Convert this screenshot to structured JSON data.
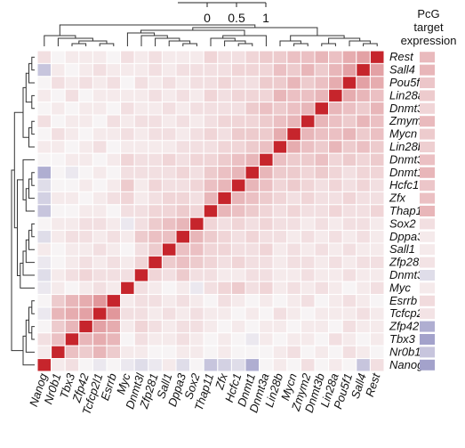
{
  "chart_data": {
    "type": "heatmap",
    "genes": [
      "Nanog",
      "Nr0b1",
      "Tbx3",
      "Zfp42",
      "Tcfcp2l1",
      "Esrrb",
      "Myc",
      "Dnmt3l",
      "Zfp281",
      "Sall1",
      "Dppa3",
      "Sox2",
      "Thap11",
      "Zfx",
      "Hcfc1",
      "Dnmt1",
      "Dnmt3a",
      "Lin28b",
      "Mycn",
      "Zmym2",
      "Dnmt3b",
      "Lin28a",
      "Pou5f1",
      "Sall4",
      "Rest"
    ],
    "color_scale": {
      "ticks": [
        "0",
        "0.5",
        "1"
      ],
      "min": -0.5,
      "max": 1,
      "colors": {
        "negative": "#7f7fb9",
        "zero": "#f7f4f5",
        "positive": "#c6252c"
      }
    },
    "side_annotation": {
      "title": [
        "PcG",
        "target",
        "expression"
      ],
      "values": [
        -0.35,
        -0.2,
        -0.35,
        -0.3,
        0.08,
        0.12,
        0.05,
        -0.1,
        0.08,
        0.05,
        0.05,
        0.1,
        0.3,
        0.25,
        0.22,
        0.3,
        0.25,
        0.18,
        0.2,
        0.28,
        0.15,
        0.2,
        0.22,
        0.3,
        0.28
      ]
    },
    "correlations": [
      [
        1.0,
        0.05,
        0.1,
        0.0,
        -0.05,
        0.0,
        -0.05,
        -0.1,
        -0.05,
        0.05,
        -0.1,
        0.0,
        -0.2,
        -0.15,
        -0.1,
        -0.3,
        0.0,
        0.05,
        0.0,
        0.1,
        0.0,
        0.05,
        0.0,
        -0.2,
        0.1
      ],
      [
        0.05,
        1.0,
        0.25,
        0.2,
        0.3,
        0.2,
        0.05,
        0.05,
        0.0,
        0.0,
        0.05,
        0.05,
        0.0,
        0.05,
        0.0,
        0.0,
        0.0,
        0.05,
        0.1,
        0.0,
        0.05,
        0.0,
        0.1,
        0.05,
        0.0
      ],
      [
        0.1,
        0.25,
        1.0,
        0.3,
        0.35,
        0.3,
        0.0,
        0.1,
        0.05,
        0.05,
        0.1,
        0.05,
        0.0,
        0.05,
        0.0,
        -0.05,
        0.05,
        0.0,
        0.05,
        0.05,
        0.0,
        0.1,
        0.05,
        0.0,
        0.05
      ],
      [
        0.0,
        0.2,
        0.3,
        1.0,
        0.4,
        0.35,
        0.05,
        0.15,
        0.1,
        0.05,
        0.1,
        0.1,
        0.05,
        0.0,
        0.05,
        0.0,
        0.05,
        0.05,
        0.0,
        0.05,
        0.05,
        0.0,
        0.1,
        0.05,
        0.05
      ],
      [
        -0.05,
        0.3,
        0.35,
        0.4,
        1.0,
        0.45,
        0.1,
        0.1,
        0.05,
        0.1,
        0.05,
        0.1,
        0.05,
        0.05,
        0.0,
        0.05,
        0.0,
        0.1,
        0.05,
        0.0,
        0.05,
        0.05,
        0.05,
        0.1,
        0.05
      ],
      [
        0.0,
        0.2,
        0.3,
        0.35,
        0.45,
        1.0,
        0.05,
        0.1,
        0.1,
        0.05,
        0.1,
        0.05,
        0.0,
        0.1,
        0.05,
        0.0,
        0.05,
        0.0,
        0.05,
        0.1,
        0.0,
        0.05,
        0.1,
        0.05,
        0.0
      ],
      [
        -0.05,
        0.05,
        0.0,
        0.05,
        0.1,
        0.05,
        1.0,
        0.1,
        0.05,
        0.0,
        0.05,
        -0.05,
        0.1,
        0.15,
        0.2,
        0.1,
        0.15,
        0.05,
        0.1,
        0.05,
        0.1,
        0.05,
        0.0,
        0.05,
        0.1
      ],
      [
        -0.1,
        0.05,
        0.1,
        0.15,
        0.1,
        0.1,
        0.1,
        1.0,
        0.15,
        0.1,
        0.2,
        0.1,
        0.1,
        0.05,
        0.05,
        0.1,
        0.1,
        0.05,
        0.05,
        0.1,
        0.05,
        0.05,
        0.1,
        0.05,
        0.05
      ],
      [
        -0.05,
        0.0,
        0.05,
        0.1,
        0.05,
        0.1,
        0.05,
        0.15,
        1.0,
        0.2,
        0.25,
        0.2,
        0.15,
        0.1,
        0.15,
        0.1,
        0.1,
        0.05,
        0.1,
        0.1,
        0.05,
        0.1,
        0.05,
        0.1,
        0.1
      ],
      [
        0.05,
        0.0,
        0.05,
        0.05,
        0.1,
        0.05,
        0.0,
        0.1,
        0.2,
        1.0,
        0.25,
        0.25,
        0.15,
        0.15,
        0.1,
        0.1,
        0.15,
        0.05,
        0.1,
        0.05,
        0.1,
        0.05,
        0.1,
        0.05,
        0.05
      ],
      [
        -0.1,
        0.05,
        0.1,
        0.1,
        0.05,
        0.1,
        0.05,
        0.2,
        0.25,
        0.25,
        1.0,
        0.3,
        0.2,
        0.15,
        0.1,
        0.15,
        0.1,
        0.1,
        0.05,
        0.1,
        0.05,
        0.1,
        0.05,
        0.1,
        0.05
      ],
      [
        0.0,
        0.05,
        0.05,
        0.1,
        0.1,
        0.05,
        -0.05,
        0.1,
        0.2,
        0.25,
        0.3,
        1.0,
        0.15,
        0.1,
        0.15,
        0.1,
        0.15,
        0.1,
        0.1,
        0.05,
        0.1,
        0.05,
        0.1,
        0.1,
        0.05
      ],
      [
        -0.2,
        0.0,
        0.0,
        0.05,
        0.05,
        0.0,
        0.1,
        0.1,
        0.15,
        0.15,
        0.2,
        0.15,
        1.0,
        0.3,
        0.25,
        0.2,
        0.15,
        0.1,
        0.15,
        0.1,
        0.1,
        0.15,
        0.1,
        0.1,
        0.15
      ],
      [
        -0.15,
        0.05,
        0.05,
        0.0,
        0.05,
        0.1,
        0.15,
        0.05,
        0.1,
        0.15,
        0.15,
        0.1,
        0.3,
        1.0,
        0.3,
        0.25,
        0.2,
        0.15,
        0.1,
        0.15,
        0.1,
        0.1,
        0.15,
        0.1,
        0.1
      ],
      [
        -0.1,
        0.0,
        0.0,
        0.05,
        0.0,
        0.05,
        0.2,
        0.05,
        0.15,
        0.1,
        0.1,
        0.15,
        0.25,
        0.3,
        1.0,
        0.3,
        0.25,
        0.15,
        0.2,
        0.15,
        0.1,
        0.15,
        0.1,
        0.15,
        0.1
      ],
      [
        -0.3,
        0.0,
        -0.05,
        0.0,
        0.05,
        0.0,
        0.1,
        0.1,
        0.1,
        0.1,
        0.15,
        0.1,
        0.2,
        0.25,
        0.3,
        1.0,
        0.3,
        0.2,
        0.2,
        0.15,
        0.2,
        0.15,
        0.1,
        0.15,
        0.15
      ],
      [
        0.0,
        0.0,
        0.05,
        0.05,
        0.0,
        0.05,
        0.15,
        0.1,
        0.1,
        0.15,
        0.1,
        0.15,
        0.15,
        0.2,
        0.25,
        0.3,
        1.0,
        0.25,
        0.2,
        0.2,
        0.25,
        0.15,
        0.2,
        0.15,
        0.2
      ],
      [
        0.05,
        0.05,
        0.0,
        0.05,
        0.1,
        0.0,
        0.05,
        0.05,
        0.05,
        0.05,
        0.1,
        0.1,
        0.1,
        0.15,
        0.15,
        0.2,
        0.25,
        1.0,
        0.35,
        0.25,
        0.2,
        0.3,
        0.2,
        0.25,
        0.2
      ],
      [
        0.0,
        0.1,
        0.05,
        0.0,
        0.05,
        0.05,
        0.1,
        0.05,
        0.1,
        0.1,
        0.05,
        0.1,
        0.15,
        0.1,
        0.2,
        0.2,
        0.2,
        0.35,
        1.0,
        0.3,
        0.25,
        0.25,
        0.3,
        0.2,
        0.25
      ],
      [
        0.1,
        0.0,
        0.05,
        0.05,
        0.0,
        0.1,
        0.05,
        0.1,
        0.1,
        0.05,
        0.1,
        0.05,
        0.1,
        0.15,
        0.15,
        0.15,
        0.2,
        0.25,
        0.3,
        1.0,
        0.3,
        0.25,
        0.2,
        0.3,
        0.25
      ],
      [
        0.0,
        0.05,
        0.0,
        0.05,
        0.05,
        0.0,
        0.1,
        0.05,
        0.05,
        0.1,
        0.05,
        0.1,
        0.1,
        0.1,
        0.1,
        0.2,
        0.25,
        0.2,
        0.25,
        0.3,
        1.0,
        0.3,
        0.25,
        0.2,
        0.3
      ],
      [
        0.05,
        0.0,
        0.1,
        0.0,
        0.05,
        0.05,
        0.05,
        0.05,
        0.1,
        0.05,
        0.1,
        0.05,
        0.15,
        0.1,
        0.15,
        0.15,
        0.15,
        0.3,
        0.25,
        0.25,
        0.3,
        1.0,
        0.35,
        0.3,
        0.25
      ],
      [
        0.0,
        0.1,
        0.05,
        0.1,
        0.05,
        0.1,
        0.0,
        0.1,
        0.05,
        0.1,
        0.05,
        0.1,
        0.1,
        0.15,
        0.1,
        0.1,
        0.2,
        0.2,
        0.3,
        0.2,
        0.25,
        0.35,
        1.0,
        0.4,
        0.35
      ],
      [
        -0.2,
        0.05,
        0.0,
        0.05,
        0.1,
        0.05,
        0.05,
        0.05,
        0.1,
        0.05,
        0.1,
        0.1,
        0.1,
        0.1,
        0.15,
        0.15,
        0.15,
        0.25,
        0.2,
        0.3,
        0.2,
        0.3,
        0.4,
        1.0,
        0.4
      ],
      [
        0.1,
        0.0,
        0.05,
        0.05,
        0.05,
        0.0,
        0.1,
        0.05,
        0.1,
        0.05,
        0.05,
        0.05,
        0.15,
        0.1,
        0.1,
        0.15,
        0.2,
        0.2,
        0.25,
        0.25,
        0.3,
        0.25,
        0.35,
        0.4,
        1.0
      ]
    ]
  }
}
